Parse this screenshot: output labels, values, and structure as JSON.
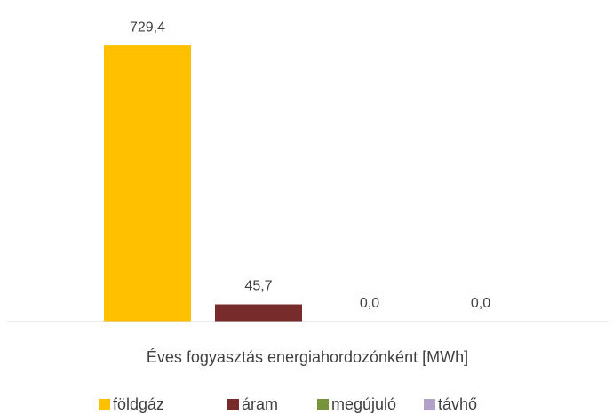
{
  "chart_data": {
    "type": "bar",
    "x_label": "Éves fogyasztás energiahordozónként [MWh]",
    "categories": [
      null
    ],
    "series": [
      {
        "name": "földgáz",
        "color": "#FFC000",
        "values": [
          729.4
        ],
        "value_labels": [
          "729,4"
        ]
      },
      {
        "name": "áram",
        "color": "#772B2B",
        "values": [
          45.7
        ],
        "value_labels": [
          "45,7"
        ]
      },
      {
        "name": "megújuló",
        "color": "#77933C",
        "values": [
          0
        ],
        "value_labels": [
          "0,0"
        ]
      },
      {
        "name": "távhő",
        "color": "#B1A0C7",
        "values": [
          0
        ],
        "value_labels": [
          "0,0"
        ]
      }
    ],
    "ylim": [
      0,
      800
    ],
    "legend": "bottom"
  }
}
